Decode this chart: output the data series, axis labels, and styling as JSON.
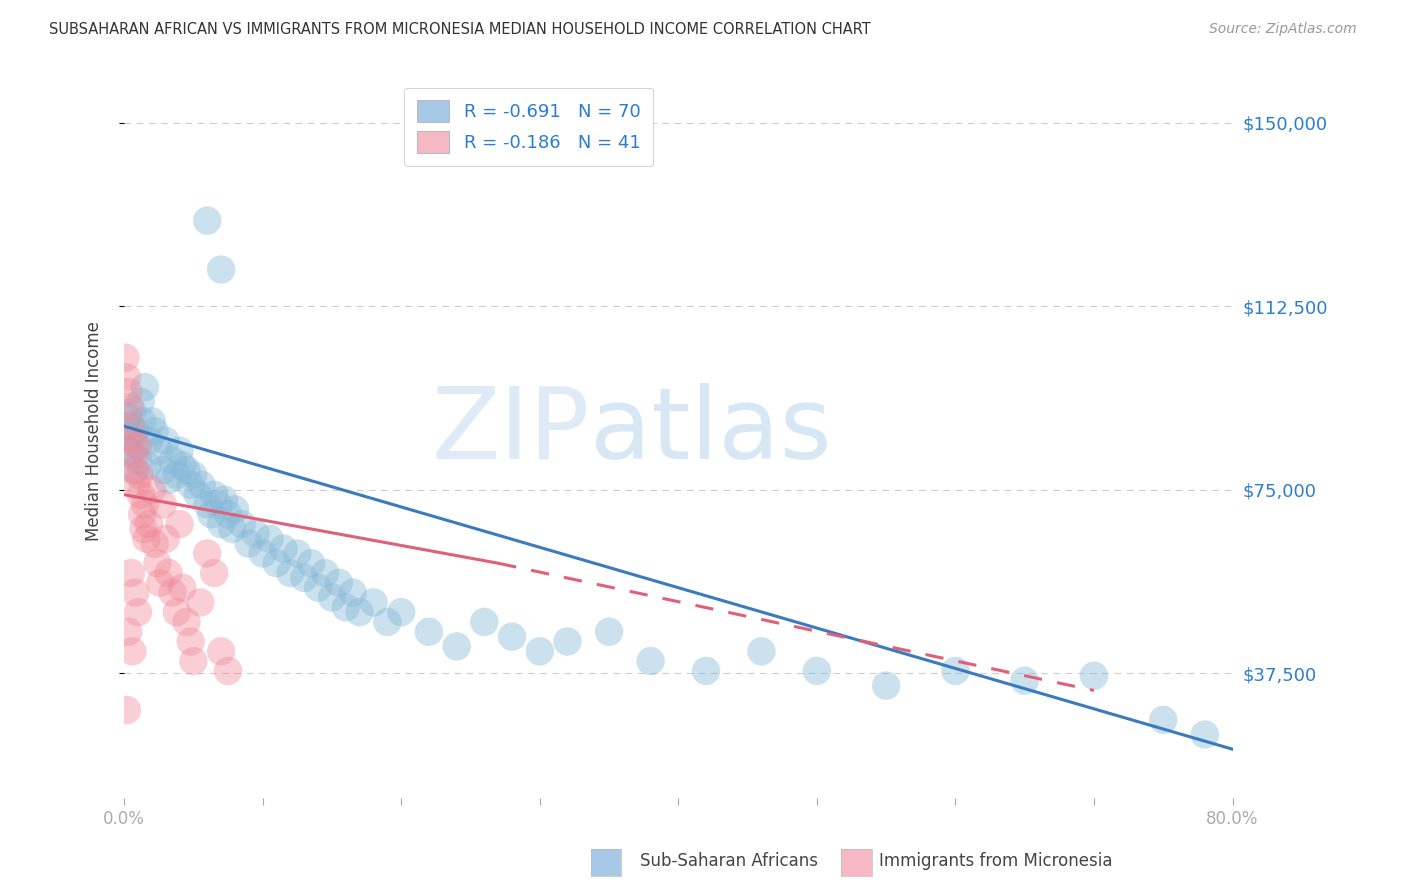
{
  "title": "SUBSAHARAN AFRICAN VS IMMIGRANTS FROM MICRONESIA MEDIAN HOUSEHOLD INCOME CORRELATION CHART",
  "source": "Source: ZipAtlas.com",
  "ylabel": "Median Household Income",
  "yticks": [
    37500,
    75000,
    112500,
    150000
  ],
  "ytick_labels": [
    "$37,500",
    "$75,000",
    "$112,500",
    "$150,000"
  ],
  "xmin": 0.0,
  "xmax": 0.8,
  "ymin": 12000,
  "ymax": 162000,
  "watermark_zip": "ZIP",
  "watermark_atlas": "atlas",
  "blue_color": "#85b8d8",
  "pink_color": "#f08898",
  "blue_line_color": "#3a7abf",
  "pink_line_color": "#e0607a",
  "blue_line": {
    "x0": 0.0,
    "y0": 88000,
    "x1": 0.8,
    "y1": 22000
  },
  "pink_line_solid": {
    "x0": 0.0,
    "y0": 74000,
    "x1": 0.27,
    "y1": 60000
  },
  "pink_line_dash": {
    "x0": 0.27,
    "y0": 60000,
    "x1": 0.7,
    "y1": 34000
  },
  "blue_scatter": [
    [
      0.002,
      88000
    ],
    [
      0.003,
      90000
    ],
    [
      0.004,
      86000
    ],
    [
      0.005,
      83000
    ],
    [
      0.006,
      91000
    ],
    [
      0.007,
      79000
    ],
    [
      0.008,
      87000
    ],
    [
      0.009,
      84000
    ],
    [
      0.01,
      81000
    ],
    [
      0.012,
      93000
    ],
    [
      0.013,
      89000
    ],
    [
      0.015,
      96000
    ],
    [
      0.017,
      80000
    ],
    [
      0.018,
      85000
    ],
    [
      0.02,
      89000
    ],
    [
      0.022,
      87000
    ],
    [
      0.025,
      83000
    ],
    [
      0.028,
      79000
    ],
    [
      0.03,
      85000
    ],
    [
      0.032,
      77000
    ],
    [
      0.035,
      81000
    ],
    [
      0.038,
      78000
    ],
    [
      0.04,
      83000
    ],
    [
      0.042,
      80000
    ],
    [
      0.045,
      79000
    ],
    [
      0.048,
      76000
    ],
    [
      0.05,
      78000
    ],
    [
      0.053,
      74000
    ],
    [
      0.056,
      76000
    ],
    [
      0.06,
      72000
    ],
    [
      0.063,
      70000
    ],
    [
      0.065,
      74000
    ],
    [
      0.068,
      72000
    ],
    [
      0.07,
      68000
    ],
    [
      0.072,
      73000
    ],
    [
      0.075,
      70000
    ],
    [
      0.078,
      67000
    ],
    [
      0.08,
      71000
    ],
    [
      0.085,
      68000
    ],
    [
      0.09,
      64000
    ],
    [
      0.095,
      66000
    ],
    [
      0.1,
      62000
    ],
    [
      0.105,
      65000
    ],
    [
      0.11,
      60000
    ],
    [
      0.115,
      63000
    ],
    [
      0.12,
      58000
    ],
    [
      0.125,
      62000
    ],
    [
      0.13,
      57000
    ],
    [
      0.135,
      60000
    ],
    [
      0.14,
      55000
    ],
    [
      0.145,
      58000
    ],
    [
      0.15,
      53000
    ],
    [
      0.155,
      56000
    ],
    [
      0.16,
      51000
    ],
    [
      0.165,
      54000
    ],
    [
      0.17,
      50000
    ],
    [
      0.18,
      52000
    ],
    [
      0.19,
      48000
    ],
    [
      0.2,
      50000
    ],
    [
      0.22,
      46000
    ],
    [
      0.24,
      43000
    ],
    [
      0.26,
      48000
    ],
    [
      0.28,
      45000
    ],
    [
      0.3,
      42000
    ],
    [
      0.32,
      44000
    ],
    [
      0.35,
      46000
    ],
    [
      0.38,
      40000
    ],
    [
      0.42,
      38000
    ],
    [
      0.46,
      42000
    ],
    [
      0.5,
      38000
    ],
    [
      0.06,
      130000
    ],
    [
      0.07,
      120000
    ],
    [
      0.55,
      35000
    ],
    [
      0.6,
      38000
    ],
    [
      0.65,
      36000
    ],
    [
      0.7,
      37000
    ],
    [
      0.75,
      28000
    ],
    [
      0.78,
      25000
    ]
  ],
  "pink_scatter": [
    [
      0.001,
      102000
    ],
    [
      0.002,
      98000
    ],
    [
      0.003,
      95000
    ],
    [
      0.004,
      92000
    ],
    [
      0.005,
      88000
    ],
    [
      0.006,
      85000
    ],
    [
      0.007,
      82000
    ],
    [
      0.008,
      79000
    ],
    [
      0.009,
      76000
    ],
    [
      0.01,
      84000
    ],
    [
      0.011,
      78000
    ],
    [
      0.012,
      74000
    ],
    [
      0.013,
      70000
    ],
    [
      0.014,
      67000
    ],
    [
      0.015,
      72000
    ],
    [
      0.016,
      65000
    ],
    [
      0.018,
      68000
    ],
    [
      0.02,
      75000
    ],
    [
      0.022,
      64000
    ],
    [
      0.024,
      60000
    ],
    [
      0.026,
      56000
    ],
    [
      0.028,
      72000
    ],
    [
      0.03,
      65000
    ],
    [
      0.032,
      58000
    ],
    [
      0.035,
      54000
    ],
    [
      0.038,
      50000
    ],
    [
      0.04,
      68000
    ],
    [
      0.042,
      55000
    ],
    [
      0.045,
      48000
    ],
    [
      0.048,
      44000
    ],
    [
      0.05,
      40000
    ],
    [
      0.055,
      52000
    ],
    [
      0.06,
      62000
    ],
    [
      0.065,
      58000
    ],
    [
      0.07,
      42000
    ],
    [
      0.075,
      38000
    ],
    [
      0.005,
      58000
    ],
    [
      0.008,
      54000
    ],
    [
      0.01,
      50000
    ],
    [
      0.003,
      46000
    ],
    [
      0.006,
      42000
    ],
    [
      0.002,
      30000
    ]
  ],
  "grid_color": "#cccccc",
  "background_color": "#ffffff",
  "legend_patch_blue": "#a8c8e8",
  "legend_patch_pink": "#f5b8c4"
}
